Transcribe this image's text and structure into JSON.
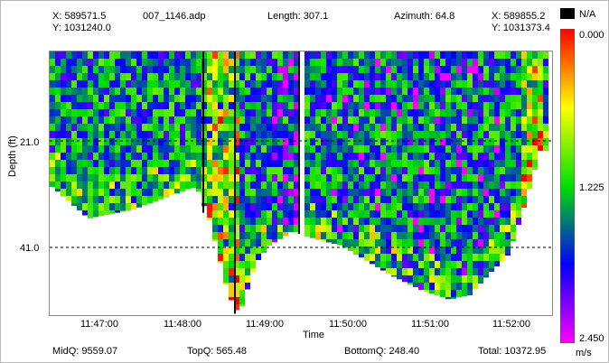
{
  "header": {
    "left_x": "X: 589571.5",
    "left_y": "Y: 1031240.0",
    "file": "007_1146.adp",
    "length": "Length: 307.1",
    "azimuth": "Azimuth: 64.8",
    "right_x": "X: 589855.2",
    "right_y": "Y: 1031373.4"
  },
  "legend": {
    "na_label": "N/A",
    "max_label": "0.000",
    "mid_label": "1.225",
    "min_label": "2.450",
    "unit": "m/s"
  },
  "footer": {
    "midq": "MidQ: 9559.07",
    "topq": "TopQ: 565.48",
    "bottomq": "BottomQ: 248.40",
    "total": "Total: 10372.95"
  },
  "chart_data": {
    "type": "heatmap",
    "xlabel": "Time",
    "ylabel": "Depth (ft)",
    "x_ticks": [
      "11:47:00",
      "11:48:00",
      "11:49:00",
      "11:50:00",
      "11:51:00",
      "11:52:00"
    ],
    "y_ticks": [
      "21.0",
      "41.0"
    ],
    "reference_depths": [
      21.0,
      41.0
    ],
    "color_scale": {
      "min": 0.0,
      "max": 2.45,
      "unit": "m/s",
      "colors": [
        "#ff0000",
        "#ffff00",
        "#00e000",
        "#0000ff",
        "#ff00ff"
      ]
    }
  },
  "colors": {
    "frame": "#b8b8b8",
    "na": "#000000"
  }
}
